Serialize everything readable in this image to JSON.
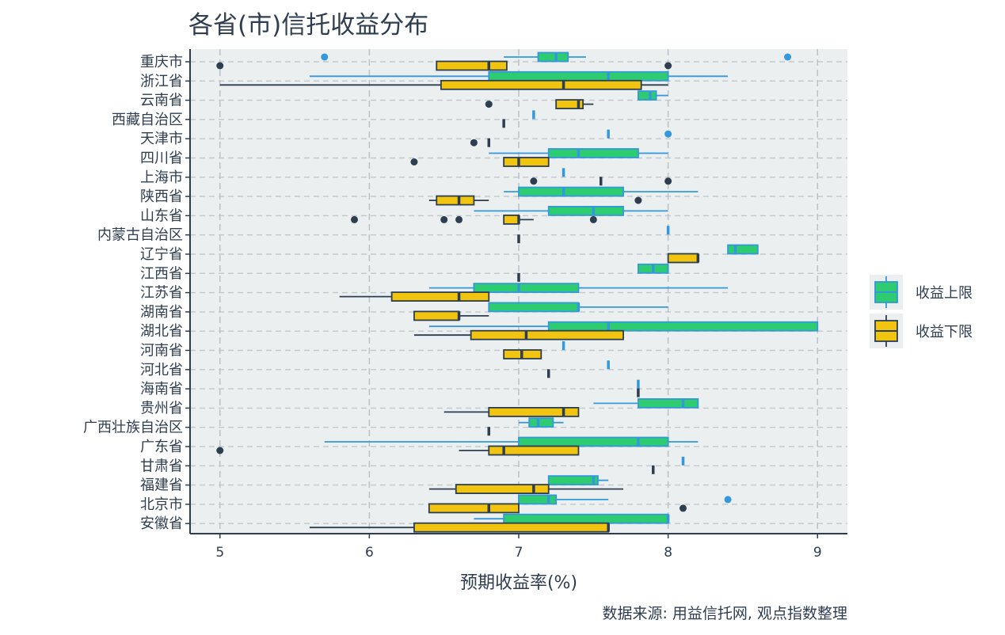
{
  "chart_data": {
    "type": "boxplot",
    "orientation": "horizontal",
    "title": "各省(市)信托收益分布",
    "xlabel": "预期收益率(%)",
    "ylabel": "",
    "caption": "数据来源: 用益信托网, 观点指数整理",
    "xlim": [
      4.8,
      9.2
    ],
    "xticks": [
      5,
      6,
      7,
      8,
      9
    ],
    "grid": true,
    "legend_position": "right",
    "categories": [
      "重庆市",
      "浙江省",
      "云南省",
      "西藏自治区",
      "天津市",
      "四川省",
      "上海市",
      "陕西省",
      "山东省",
      "内蒙古自治区",
      "辽宁省",
      "江西省",
      "江苏省",
      "湖南省",
      "湖北省",
      "河南省",
      "河北省",
      "海南省",
      "贵州省",
      "广西壮族自治区",
      "广东省",
      "甘肃省",
      "福建省",
      "北京市",
      "安徽省"
    ],
    "colors": {
      "upper_fill": "#2ecc71",
      "lower_fill": "#f1c40f",
      "upper_line": "#3498db",
      "lower_line": "#2c3e50",
      "panel": "#ebeff0"
    },
    "series": [
      {
        "name": "收益上限",
        "boxes": [
          {
            "min": 6.9,
            "q1": 7.13,
            "median": 7.25,
            "q3": 7.33,
            "max": 7.45,
            "outliers": [
              5.7,
              8.8
            ]
          },
          {
            "min": 5.6,
            "q1": 6.8,
            "median": 7.6,
            "q3": 8.0,
            "max": 8.4,
            "outliers": []
          },
          {
            "min": 7.8,
            "q1": 7.8,
            "median": 7.88,
            "q3": 7.92,
            "max": 8.0,
            "outliers": []
          },
          {
            "min": 7.1,
            "q1": 7.1,
            "median": 7.1,
            "q3": 7.1,
            "max": 7.1,
            "outliers": []
          },
          {
            "min": 7.6,
            "q1": 7.6,
            "median": 7.6,
            "q3": 7.6,
            "max": 7.6,
            "outliers": [
              8.0
            ]
          },
          {
            "min": 6.8,
            "q1": 7.2,
            "median": 7.4,
            "q3": 7.8,
            "max": 8.0,
            "outliers": []
          },
          {
            "min": 7.3,
            "q1": 7.3,
            "median": 7.3,
            "q3": 7.3,
            "max": 7.3,
            "outliers": []
          },
          {
            "min": 6.9,
            "q1": 7.0,
            "median": 7.3,
            "q3": 7.7,
            "max": 8.2,
            "outliers": []
          },
          {
            "min": 6.7,
            "q1": 7.2,
            "median": 7.5,
            "q3": 7.7,
            "max": 8.0,
            "outliers": []
          },
          {
            "min": 8.0,
            "q1": 8.0,
            "median": 8.0,
            "q3": 8.0,
            "max": 8.0,
            "outliers": []
          },
          {
            "min": 8.4,
            "q1": 8.4,
            "median": 8.45,
            "q3": 8.6,
            "max": 8.6,
            "outliers": []
          },
          {
            "min": 7.8,
            "q1": 7.8,
            "median": 7.9,
            "q3": 8.0,
            "max": 8.0,
            "outliers": []
          },
          {
            "min": 6.4,
            "q1": 6.7,
            "median": 7.0,
            "q3": 7.4,
            "max": 8.4,
            "outliers": []
          },
          {
            "min": 6.8,
            "q1": 6.8,
            "median": 7.4,
            "q3": 7.4,
            "max": 8.0,
            "outliers": []
          },
          {
            "min": 6.4,
            "q1": 7.2,
            "median": 7.6,
            "q3": 9.0,
            "max": 9.0,
            "outliers": []
          },
          {
            "min": 7.3,
            "q1": 7.3,
            "median": 7.3,
            "q3": 7.3,
            "max": 7.3,
            "outliers": []
          },
          {
            "min": 7.6,
            "q1": 7.6,
            "median": 7.6,
            "q3": 7.6,
            "max": 7.6,
            "outliers": []
          },
          {
            "min": 7.8,
            "q1": 7.8,
            "median": 7.8,
            "q3": 7.8,
            "max": 7.8,
            "outliers": []
          },
          {
            "min": 7.5,
            "q1": 7.8,
            "median": 8.1,
            "q3": 8.2,
            "max": 8.2,
            "outliers": []
          },
          {
            "min": 7.0,
            "q1": 7.07,
            "median": 7.13,
            "q3": 7.23,
            "max": 7.3,
            "outliers": []
          },
          {
            "min": 5.7,
            "q1": 7.0,
            "median": 7.8,
            "q3": 8.0,
            "max": 8.2,
            "outliers": []
          },
          {
            "min": 8.1,
            "q1": 8.1,
            "median": 8.1,
            "q3": 8.1,
            "max": 8.1,
            "outliers": []
          },
          {
            "min": 7.2,
            "q1": 7.2,
            "median": 7.5,
            "q3": 7.53,
            "max": 7.6,
            "outliers": []
          },
          {
            "min": 7.0,
            "q1": 7.0,
            "median": 7.2,
            "q3": 7.25,
            "max": 7.6,
            "outliers": [
              8.4
            ]
          },
          {
            "min": 6.7,
            "q1": 6.9,
            "median": 8.0,
            "q3": 8.0,
            "max": 8.0,
            "outliers": []
          }
        ]
      },
      {
        "name": "收益下限",
        "boxes": [
          {
            "min": 6.45,
            "q1": 6.45,
            "median": 6.8,
            "q3": 6.92,
            "max": 6.92,
            "outliers": [
              5.0,
              8.0
            ]
          },
          {
            "min": 5.0,
            "q1": 6.48,
            "median": 7.3,
            "q3": 7.82,
            "max": 8.0,
            "outliers": []
          },
          {
            "min": 7.25,
            "q1": 7.25,
            "median": 7.4,
            "q3": 7.43,
            "max": 7.5,
            "outliers": [
              6.8
            ]
          },
          {
            "min": 6.9,
            "q1": 6.9,
            "median": 6.9,
            "q3": 6.9,
            "max": 6.9,
            "outliers": []
          },
          {
            "min": 6.8,
            "q1": 6.8,
            "median": 6.8,
            "q3": 6.8,
            "max": 6.8,
            "outliers": [
              6.7
            ]
          },
          {
            "min": 6.9,
            "q1": 6.9,
            "median": 7.0,
            "q3": 7.2,
            "max": 7.2,
            "outliers": [
              6.3
            ]
          },
          {
            "min": 7.55,
            "q1": 7.55,
            "median": 7.55,
            "q3": 7.55,
            "max": 7.55,
            "outliers": [
              7.1,
              8.0
            ]
          },
          {
            "min": 6.4,
            "q1": 6.45,
            "median": 6.6,
            "q3": 6.7,
            "max": 6.8,
            "outliers": [
              7.8
            ]
          },
          {
            "min": 6.9,
            "q1": 6.9,
            "median": 7.0,
            "q3": 7.0,
            "max": 7.1,
            "outliers": [
              5.9,
              6.5,
              6.6,
              7.5
            ]
          },
          {
            "min": 7.0,
            "q1": 7.0,
            "median": 7.0,
            "q3": 7.0,
            "max": 7.0,
            "outliers": []
          },
          {
            "min": 8.0,
            "q1": 8.0,
            "median": 8.2,
            "q3": 8.2,
            "max": 8.2,
            "outliers": []
          },
          {
            "min": 7.0,
            "q1": 7.0,
            "median": 7.0,
            "q3": 7.0,
            "max": 7.0,
            "outliers": []
          },
          {
            "min": 5.8,
            "q1": 6.15,
            "median": 6.6,
            "q3": 6.8,
            "max": 6.8,
            "outliers": []
          },
          {
            "min": 6.3,
            "q1": 6.3,
            "median": 6.6,
            "q3": 6.6,
            "max": 6.8,
            "outliers": []
          },
          {
            "min": 6.3,
            "q1": 6.68,
            "median": 7.05,
            "q3": 7.7,
            "max": 7.7,
            "outliers": []
          },
          {
            "min": 6.9,
            "q1": 6.9,
            "median": 7.02,
            "q3": 7.15,
            "max": 7.15,
            "outliers": []
          },
          {
            "min": 7.2,
            "q1": 7.2,
            "median": 7.2,
            "q3": 7.2,
            "max": 7.2,
            "outliers": []
          },
          {
            "min": 7.8,
            "q1": 7.8,
            "median": 7.8,
            "q3": 7.8,
            "max": 7.8,
            "outliers": []
          },
          {
            "min": 6.5,
            "q1": 6.8,
            "median": 7.3,
            "q3": 7.4,
            "max": 7.4,
            "outliers": []
          },
          {
            "min": 6.8,
            "q1": 6.8,
            "median": 6.8,
            "q3": 6.8,
            "max": 6.8,
            "outliers": []
          },
          {
            "min": 6.6,
            "q1": 6.8,
            "median": 6.9,
            "q3": 7.4,
            "max": 7.4,
            "outliers": [
              5.0
            ]
          },
          {
            "min": 7.9,
            "q1": 7.9,
            "median": 7.9,
            "q3": 7.9,
            "max": 7.9,
            "outliers": []
          },
          {
            "min": 6.4,
            "q1": 6.58,
            "median": 7.1,
            "q3": 7.2,
            "max": 7.7,
            "outliers": []
          },
          {
            "min": 6.4,
            "q1": 6.4,
            "median": 6.8,
            "q3": 7.0,
            "max": 7.0,
            "outliers": [
              8.1
            ]
          },
          {
            "min": 5.6,
            "q1": 6.3,
            "median": 7.6,
            "q3": 7.6,
            "max": 7.6,
            "outliers": []
          }
        ]
      }
    ]
  }
}
